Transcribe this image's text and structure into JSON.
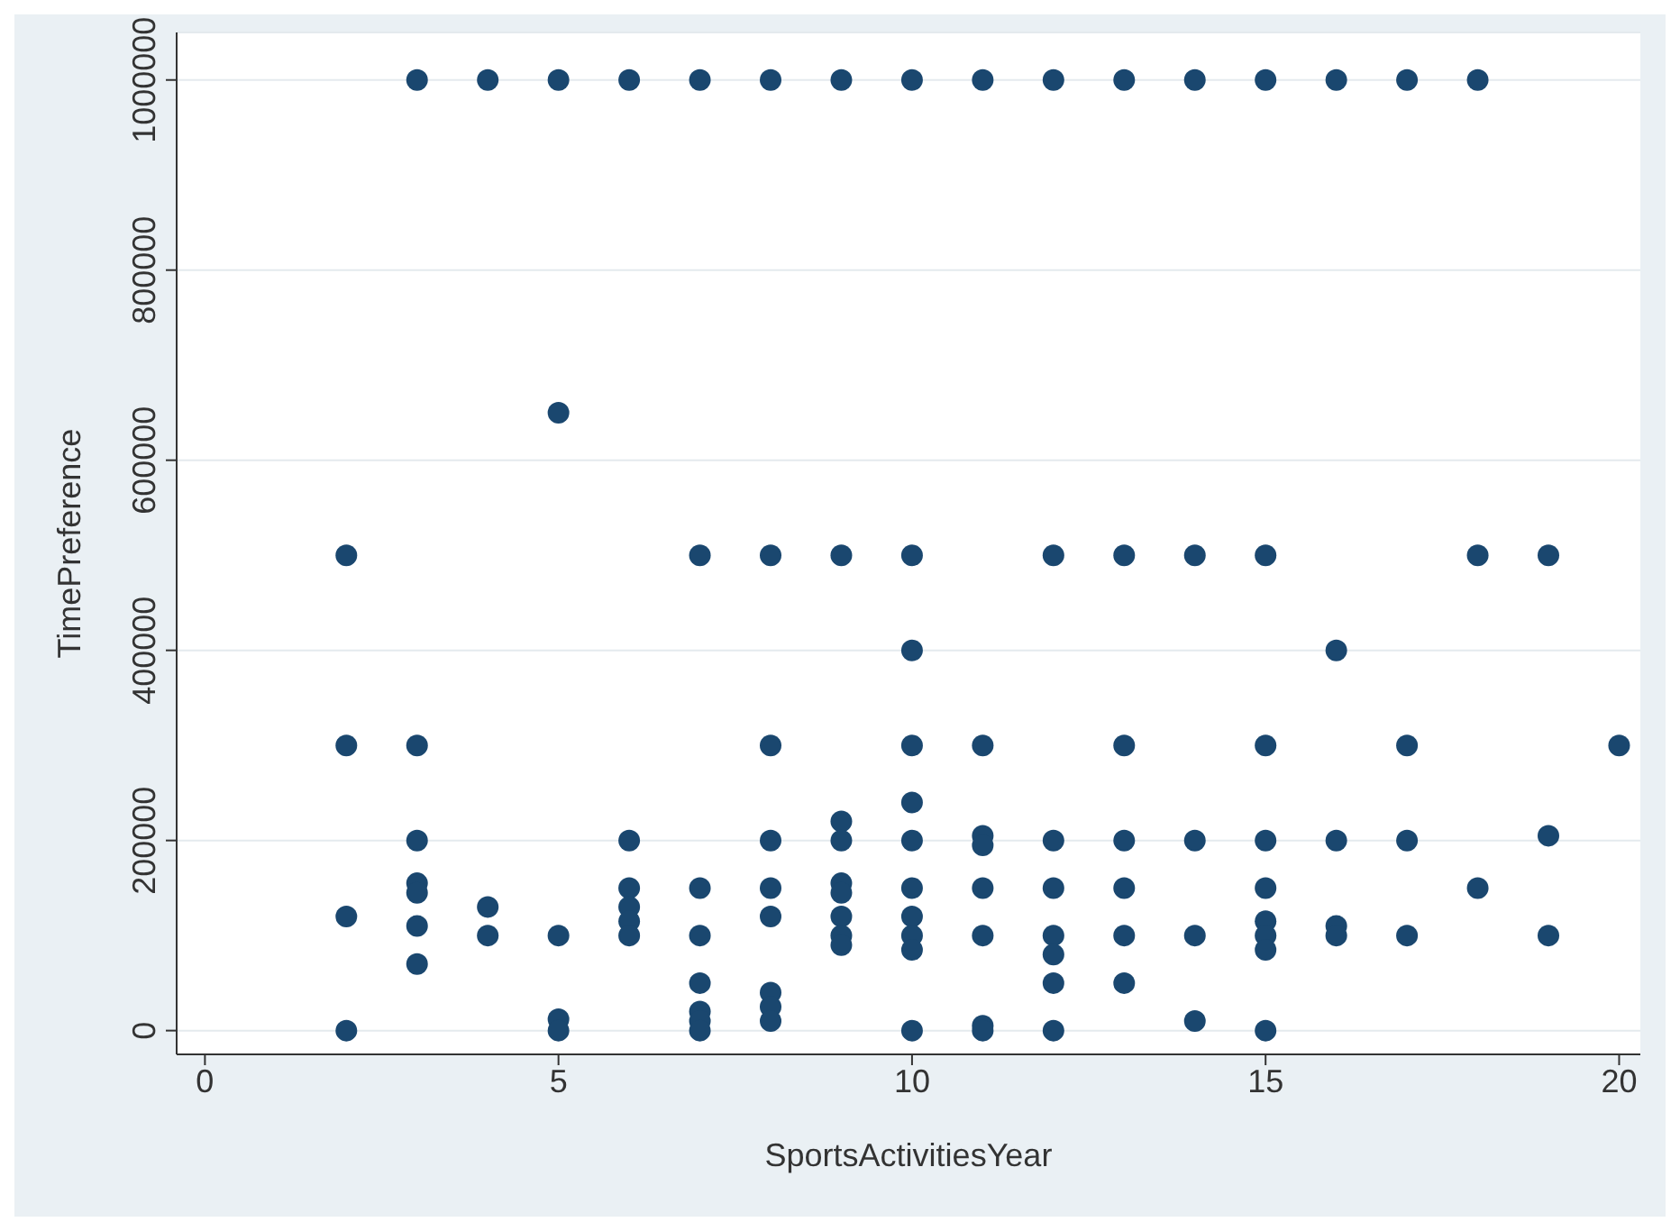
{
  "chart_data": {
    "type": "scatter",
    "xlabel": "SportsActivitiesYear",
    "ylabel": "TimePreference",
    "marker": "circle",
    "grid": "y",
    "xlim": [
      -0.4,
      20.3
    ],
    "xticks": [
      0,
      5,
      10,
      15,
      20
    ],
    "ylim": [
      -25000,
      1050000
    ],
    "yticks": [
      0,
      200000,
      400000,
      600000,
      800000,
      1000000
    ],
    "series": [
      {
        "color": "#1a476f",
        "x": [
          2,
          2,
          2,
          2,
          3,
          3,
          3,
          3,
          3,
          3,
          3,
          4,
          4,
          4,
          5,
          5,
          5,
          5,
          5,
          6,
          6,
          6,
          6,
          6,
          6,
          7,
          7,
          7,
          7,
          7,
          7,
          7,
          7,
          8,
          8,
          8,
          8,
          8,
          8,
          8,
          8,
          8,
          9,
          9,
          9,
          9,
          9,
          9,
          9,
          9,
          9,
          10,
          10,
          10,
          10,
          10,
          10,
          10,
          10,
          10,
          10,
          10,
          11,
          11,
          11,
          11,
          11,
          11,
          11,
          11,
          12,
          12,
          12,
          12,
          12,
          12,
          12,
          12,
          13,
          13,
          13,
          13,
          13,
          13,
          13,
          14,
          14,
          14,
          14,
          14,
          15,
          15,
          15,
          15,
          15,
          15,
          15,
          15,
          15,
          16,
          16,
          16,
          16,
          16,
          17,
          17,
          17,
          17,
          18,
          18,
          18,
          19,
          19,
          19,
          20
        ],
        "values": [
          500000,
          300000,
          120000,
          0,
          1000000,
          300000,
          200000,
          155000,
          145000,
          110000,
          70000,
          1000000,
          130000,
          100000,
          1000000,
          650000,
          100000,
          12000,
          0,
          1000000,
          200000,
          150000,
          130000,
          115000,
          100000,
          1000000,
          500000,
          150000,
          100000,
          50000,
          20000,
          10000,
          0,
          1000000,
          500000,
          300000,
          200000,
          150000,
          120000,
          40000,
          25000,
          10000,
          1000000,
          500000,
          220000,
          200000,
          155000,
          145000,
          120000,
          100000,
          90000,
          1000000,
          500000,
          400000,
          300000,
          240000,
          200000,
          150000,
          120000,
          100000,
          85000,
          0,
          1000000,
          300000,
          205000,
          195000,
          150000,
          100000,
          5000,
          0,
          1000000,
          500000,
          200000,
          150000,
          100000,
          80000,
          50000,
          0,
          1000000,
          500000,
          300000,
          200000,
          150000,
          100000,
          50000,
          1000000,
          500000,
          200000,
          100000,
          10000,
          1000000,
          500000,
          300000,
          200000,
          150000,
          115000,
          100000,
          85000,
          0,
          1000000,
          400000,
          200000,
          110000,
          100000,
          1000000,
          300000,
          200000,
          100000,
          1000000,
          500000,
          150000,
          500000,
          205000,
          100000,
          300000
        ]
      }
    ]
  }
}
